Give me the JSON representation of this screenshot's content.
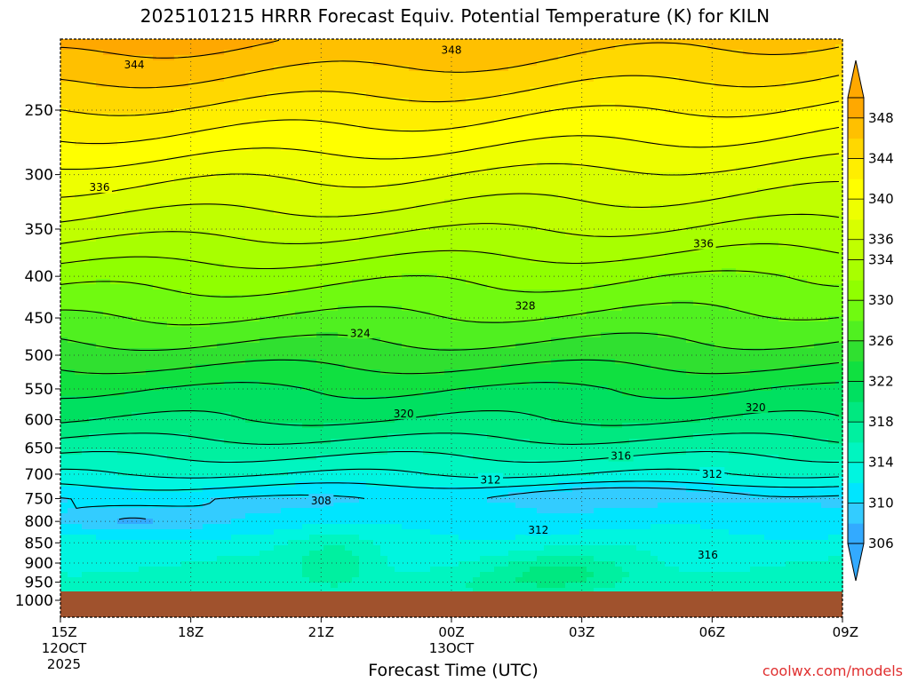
{
  "chart_data": {
    "type": "heatmap",
    "title": "2025101215 HRRR Forecast Equiv. Potential Temperature (K) for KILN",
    "xlabel": "Forecast Time (UTC)",
    "ylabel": "",
    "credit": "coolwx.com/models",
    "y_scale": "log-pressure",
    "y_ticks": [
      250,
      300,
      350,
      400,
      450,
      500,
      550,
      600,
      650,
      700,
      750,
      800,
      850,
      900,
      950,
      1000
    ],
    "y_range": [
      200,
      1000
    ],
    "surface_pressure": 975,
    "x_ticks": [
      {
        "hour": 0,
        "lines": [
          "15Z",
          "12OCT",
          "2025"
        ]
      },
      {
        "hour": 3,
        "lines": [
          "18Z"
        ]
      },
      {
        "hour": 6,
        "lines": [
          "21Z"
        ]
      },
      {
        "hour": 9,
        "lines": [
          "00Z",
          "13OCT"
        ]
      },
      {
        "hour": 12,
        "lines": [
          "03Z"
        ]
      },
      {
        "hour": 15,
        "lines": [
          "06Z"
        ]
      },
      {
        "hour": 18,
        "lines": [
          "09Z"
        ]
      }
    ],
    "x_range": [
      0,
      18
    ],
    "grid": true,
    "colorbar_levels": [
      306,
      308,
      310,
      312,
      314,
      316,
      318,
      320,
      322,
      324,
      326,
      328,
      330,
      332,
      334,
      336,
      338,
      340,
      342,
      344,
      346,
      348
    ],
    "colorbar_labels": [
      306,
      310,
      314,
      318,
      322,
      326,
      330,
      334,
      336,
      340,
      344,
      348
    ],
    "colorbar_colors": [
      "#33aaff",
      "#33ccff",
      "#00e5ff",
      "#00f5e0",
      "#00f5c0",
      "#00f0a0",
      "#00e880",
      "#00e060",
      "#10e040",
      "#30e030",
      "#50f020",
      "#70fa10",
      "#90ff00",
      "#a8ff00",
      "#c0ff00",
      "#d8ff00",
      "#eeff00",
      "#ffff00",
      "#ffee00",
      "#ffd800",
      "#ffc000",
      "#ffa800"
    ],
    "contour_labels": [
      {
        "text": "348",
        "hour": 9.0,
        "p": 211
      },
      {
        "text": "344",
        "hour": 1.7,
        "p": 220
      },
      {
        "text": "336",
        "hour": 0.9,
        "p": 311
      },
      {
        "text": "336",
        "hour": 14.8,
        "p": 365
      },
      {
        "text": "328",
        "hour": 10.7,
        "p": 435
      },
      {
        "text": "324",
        "hour": 6.9,
        "p": 470
      },
      {
        "text": "320",
        "hour": 7.9,
        "p": 590
      },
      {
        "text": "320",
        "hour": 16.0,
        "p": 580
      },
      {
        "text": "316",
        "hour": 12.9,
        "p": 665
      },
      {
        "text": "316",
        "hour": 14.9,
        "p": 880
      },
      {
        "text": "312",
        "hour": 9.9,
        "p": 712
      },
      {
        "text": "312",
        "hour": 15.0,
        "p": 700
      },
      {
        "text": "312",
        "hour": 11.0,
        "p": 820
      },
      {
        "text": "308",
        "hour": 6.0,
        "p": 755
      }
    ]
  }
}
